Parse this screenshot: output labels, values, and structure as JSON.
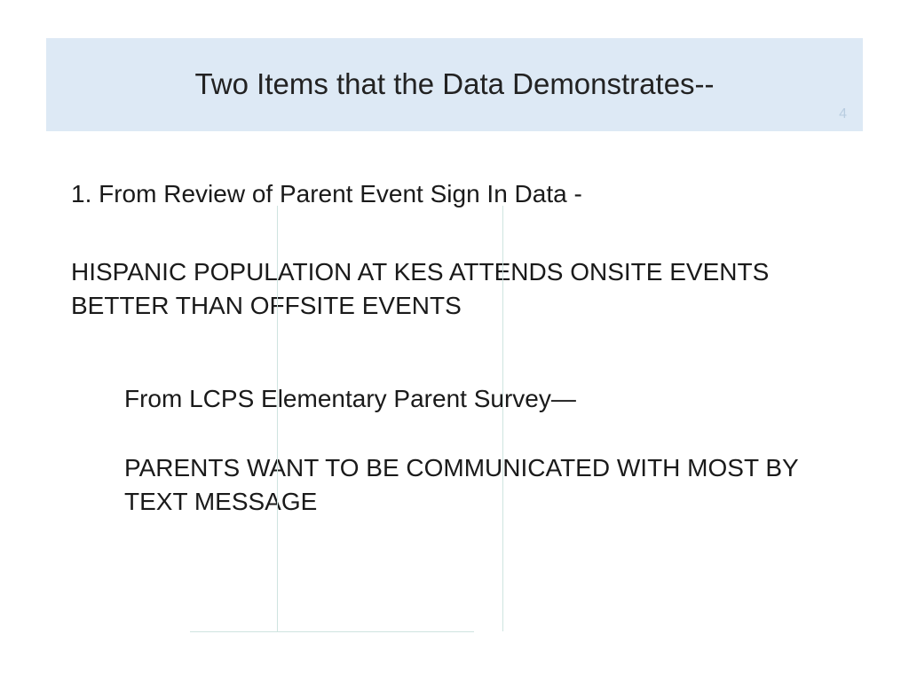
{
  "title": "Two Items that the Data Demonstrates--",
  "page_number": "4",
  "colors": {
    "title_bg": "#dde9f5",
    "text": "#1a1a1a",
    "page_num": "#b9cde0",
    "rule": "#cfe4e0",
    "background": "#ffffff"
  },
  "typography": {
    "title_fontsize_pt": 25,
    "body_fontsize_pt": 21,
    "font_family": "Verdana"
  },
  "content": {
    "item1_heading": "1. From Review of Parent Event Sign In Data -",
    "item1_body": "HISPANIC POPULATION AT KES ATTENDS ONSITE EVENTS BETTER THAN OFFSITE EVENTS",
    "item2_heading": "From LCPS Elementary Parent Survey—",
    "item2_body": "PARENTS WANT TO BE COMMUNICATED WITH MOST BY TEXT MESSAGE"
  }
}
